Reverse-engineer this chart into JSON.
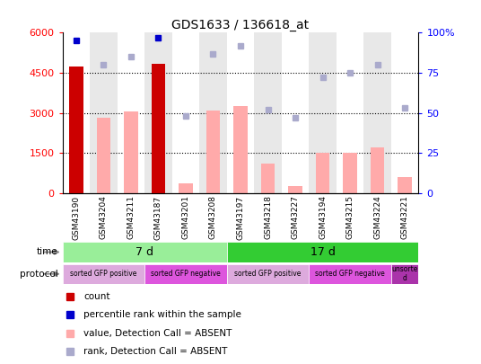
{
  "title": "GDS1633 / 136618_at",
  "samples": [
    "GSM43190",
    "GSM43204",
    "GSM43211",
    "GSM43187",
    "GSM43201",
    "GSM43208",
    "GSM43197",
    "GSM43218",
    "GSM43227",
    "GSM43194",
    "GSM43215",
    "GSM43224",
    "GSM43221"
  ],
  "count_values": [
    4750,
    null,
    null,
    4850,
    null,
    null,
    null,
    null,
    null,
    null,
    null,
    null,
    null
  ],
  "value_absent": [
    null,
    2800,
    3050,
    null,
    350,
    3100,
    3250,
    1100,
    250,
    1500,
    1500,
    1700,
    600
  ],
  "rank_present_pct": [
    95,
    null,
    null,
    97,
    null,
    null,
    null,
    null,
    null,
    null,
    null,
    null,
    null
  ],
  "rank_absent_pct": [
    null,
    80,
    85,
    null,
    48,
    87,
    92,
    52,
    47,
    72,
    75,
    80,
    53
  ],
  "ylim_left": [
    0,
    6000
  ],
  "ylim_right": [
    0,
    100
  ],
  "yticks_left": [
    0,
    1500,
    3000,
    4500,
    6000
  ],
  "yticks_right": [
    0,
    25,
    50,
    75,
    100
  ],
  "color_count": "#cc0000",
  "color_rank_present": "#0000cc",
  "color_value_absent": "#ffaaaa",
  "color_rank_absent": "#aaaacc",
  "bar_width": 0.5,
  "time_labels": [
    {
      "label": "7 d",
      "start": 0,
      "end": 6,
      "color": "#99ee99"
    },
    {
      "label": "17 d",
      "start": 6,
      "end": 13,
      "color": "#33cc33"
    }
  ],
  "protocol_labels": [
    {
      "label": "sorted GFP positive",
      "start": 0,
      "end": 3,
      "color": "#ddaadd"
    },
    {
      "label": "sorted GFP negative",
      "start": 3,
      "end": 6,
      "color": "#dd55dd"
    },
    {
      "label": "sorted GFP positive",
      "start": 6,
      "end": 9,
      "color": "#ddaadd"
    },
    {
      "label": "sorted GFP negative",
      "start": 9,
      "end": 12,
      "color": "#dd55dd"
    },
    {
      "label": "unsorte\nd",
      "start": 12,
      "end": 13,
      "color": "#aa33aa"
    }
  ],
  "legend_items": [
    {
      "label": "count",
      "color": "#cc0000"
    },
    {
      "label": "percentile rank within the sample",
      "color": "#0000cc"
    },
    {
      "label": "value, Detection Call = ABSENT",
      "color": "#ffaaaa"
    },
    {
      "label": "rank, Detection Call = ABSENT",
      "color": "#aaaacc"
    }
  ],
  "col_bg": [
    "#ffffff",
    "#e8e8e8"
  ]
}
